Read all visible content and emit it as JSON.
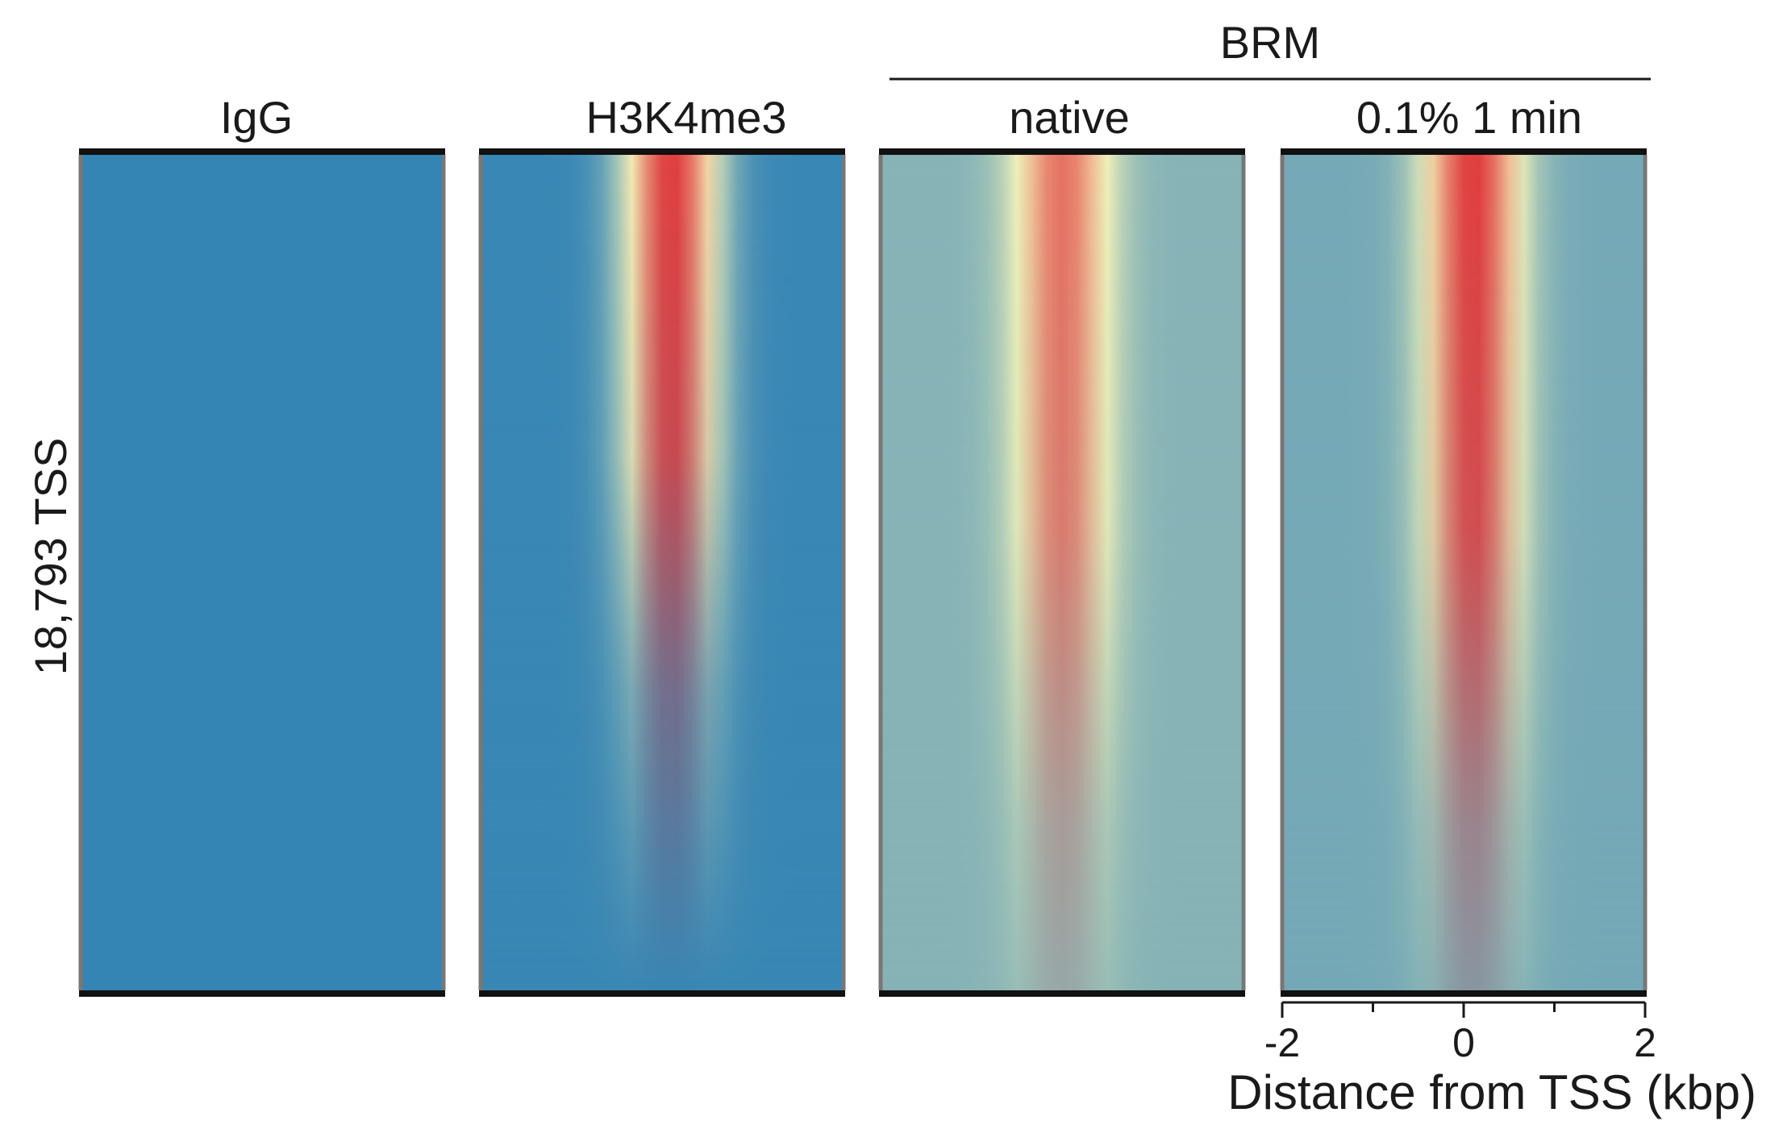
{
  "chart_data": {
    "type": "heatmap",
    "ylabel": "18,793 TSS",
    "xlabel": "Distance from TSS (kbp)",
    "group_label": "BRM",
    "x_range": [
      -2,
      2
    ],
    "x_ticks": [
      -2,
      -1,
      0,
      1,
      2
    ],
    "x_tick_labels": [
      "-2",
      "",
      "0",
      "",
      "2"
    ],
    "row_count": 18793,
    "colormap": [
      "#1f78b4",
      "#f5f3b8",
      "#e0383b"
    ],
    "panels": [
      {
        "name": "IgG",
        "peak_center_kbp": 0.0,
        "peak_intensity": 0.0,
        "background": 0.05,
        "peak_fraction": 0.0
      },
      {
        "name": "H3K4me3",
        "peak_center_kbp": 0.1,
        "peak_intensity": 1.0,
        "background": 0.06,
        "peak_fraction": 0.8
      },
      {
        "name": "native",
        "peak_center_kbp": 0.0,
        "peak_intensity": 0.85,
        "background": 0.24,
        "peak_fraction": 1.0
      },
      {
        "name": "0.1% 1 min",
        "peak_center_kbp": 0.1,
        "peak_intensity": 1.0,
        "background": 0.2,
        "peak_fraction": 1.0
      }
    ]
  }
}
